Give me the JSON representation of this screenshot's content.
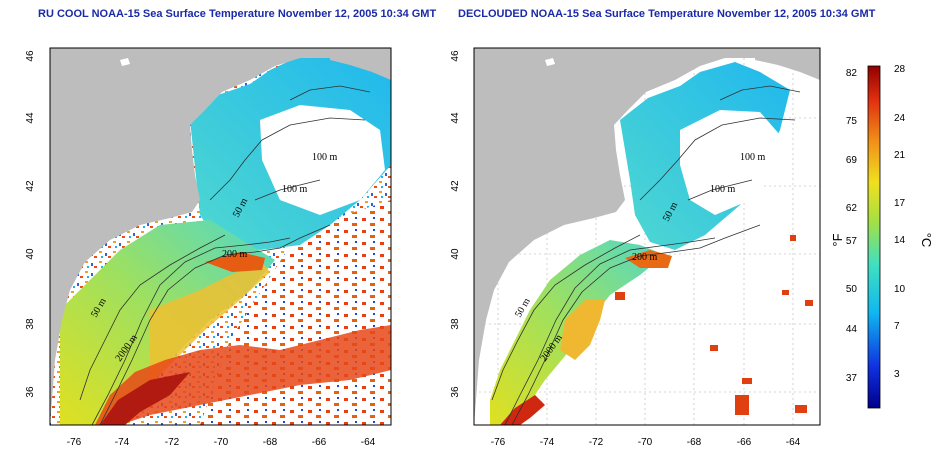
{
  "maps": [
    {
      "title": "RU COOL NOAA-15 Sea Surface Temperature November 12, 2005 10:34 GMT",
      "lat_ticks": [
        "46",
        "44",
        "42",
        "40",
        "38",
        "36"
      ],
      "lon_ticks": [
        "-76",
        "-74",
        "-72",
        "-70",
        "-68",
        "-66",
        "-64"
      ],
      "contour_labels": [
        "100 m",
        "100 m",
        "50 m",
        "200 m",
        "50 m",
        "2000 m"
      ]
    },
    {
      "title": "DECLOUDED NOAA-15 Sea Surface Temperature November 12, 2005 10:34 GMT",
      "lat_ticks": [
        "46",
        "44",
        "42",
        "40",
        "38",
        "36"
      ],
      "lon_ticks": [
        "-76",
        "-74",
        "-72",
        "-70",
        "-68",
        "-66",
        "-64"
      ],
      "contour_labels": [
        "100 m",
        "100 m",
        "50 m",
        "200 m",
        "50 m",
        "2000 m"
      ]
    }
  ],
  "colorbar": {
    "fahrenheit_ticks": [
      "82",
      "75",
      "69",
      "62",
      "57",
      "50",
      "44",
      "37"
    ],
    "celsius_ticks": [
      "28",
      "24",
      "21",
      "17",
      "14",
      "10",
      "7",
      "3"
    ],
    "unit_f": "°F",
    "unit_c": "°C"
  },
  "colors": {
    "land": "#bdbdbd",
    "cloud": "#ffffff",
    "title": "#1a2aa8",
    "cold": "#1414c8",
    "cool": "#2ec8ee",
    "mild": "#7ee07a",
    "warm": "#f0d020",
    "hot": "#e84010",
    "hottest": "#b01010"
  }
}
